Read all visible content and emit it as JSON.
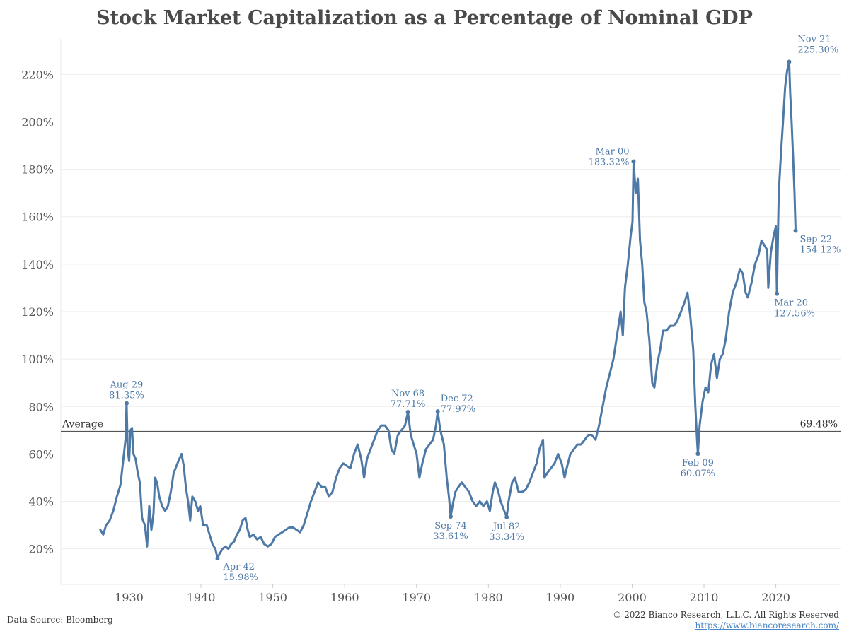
{
  "chart_data": {
    "type": "line",
    "title": "Stock Market Capitalization as a Percentage of Nominal GDP",
    "xlabel": "",
    "ylabel": "",
    "xlim": [
      1920.5,
      2029
    ],
    "ylim": [
      5,
      235
    ],
    "x_ticks": [
      {
        "value": 1930,
        "label": "1930"
      },
      {
        "value": 1940,
        "label": "1940"
      },
      {
        "value": 1950,
        "label": "1950"
      },
      {
        "value": 1960,
        "label": "1960"
      },
      {
        "value": 1970,
        "label": "1970"
      },
      {
        "value": 1980,
        "label": "1980"
      },
      {
        "value": 1990,
        "label": "1990"
      },
      {
        "value": 2000,
        "label": "2000"
      },
      {
        "value": 2010,
        "label": "2010"
      },
      {
        "value": 2020,
        "label": "2020"
      }
    ],
    "y_ticks": [
      {
        "value": 20,
        "label": "20%"
      },
      {
        "value": 40,
        "label": "40%"
      },
      {
        "value": 60,
        "label": "60%"
      },
      {
        "value": 80,
        "label": "80%"
      },
      {
        "value": 100,
        "label": "100%"
      },
      {
        "value": 120,
        "label": "120%"
      },
      {
        "value": 140,
        "label": "140%"
      },
      {
        "value": 160,
        "label": "160%"
      },
      {
        "value": 180,
        "label": "180%"
      },
      {
        "value": 200,
        "label": "200%"
      },
      {
        "value": 220,
        "label": "220%"
      }
    ],
    "grid": "horizontal",
    "series_color": "#4e79a7",
    "average": {
      "label": "Average",
      "value": 69.48,
      "value_label": "69.48%"
    },
    "series": [
      {
        "points": [
          [
            1926.0,
            28
          ],
          [
            1926.4,
            26
          ],
          [
            1926.8,
            30
          ],
          [
            1927.3,
            32
          ],
          [
            1927.8,
            36
          ],
          [
            1928.3,
            42
          ],
          [
            1928.8,
            47
          ],
          [
            1929.2,
            58
          ],
          [
            1929.5,
            66
          ],
          [
            1929.65,
            81.35
          ],
          [
            1929.8,
            62
          ],
          [
            1930.0,
            57
          ],
          [
            1930.2,
            70
          ],
          [
            1930.4,
            71
          ],
          [
            1930.6,
            60
          ],
          [
            1930.9,
            58
          ],
          [
            1931.2,
            52
          ],
          [
            1931.5,
            48
          ],
          [
            1931.8,
            33
          ],
          [
            1932.2,
            30
          ],
          [
            1932.5,
            21
          ],
          [
            1932.8,
            38
          ],
          [
            1933.1,
            28
          ],
          [
            1933.4,
            35
          ],
          [
            1933.6,
            50
          ],
          [
            1933.9,
            48
          ],
          [
            1934.2,
            42
          ],
          [
            1934.6,
            38
          ],
          [
            1935.0,
            36
          ],
          [
            1935.4,
            38
          ],
          [
            1935.8,
            44
          ],
          [
            1936.2,
            52
          ],
          [
            1936.6,
            55
          ],
          [
            1937.0,
            58
          ],
          [
            1937.3,
            60
          ],
          [
            1937.6,
            55
          ],
          [
            1937.9,
            46
          ],
          [
            1938.2,
            40
          ],
          [
            1938.5,
            32
          ],
          [
            1938.8,
            42
          ],
          [
            1939.2,
            40
          ],
          [
            1939.6,
            36
          ],
          [
            1939.9,
            38
          ],
          [
            1940.3,
            30
          ],
          [
            1940.8,
            30
          ],
          [
            1941.2,
            26
          ],
          [
            1941.6,
            22
          ],
          [
            1942.0,
            20
          ],
          [
            1942.3,
            15.98
          ],
          [
            1942.6,
            18
          ],
          [
            1943.0,
            20
          ],
          [
            1943.4,
            21
          ],
          [
            1943.8,
            20
          ],
          [
            1944.2,
            22
          ],
          [
            1944.6,
            23
          ],
          [
            1945.0,
            26
          ],
          [
            1945.4,
            28
          ],
          [
            1945.8,
            32
          ],
          [
            1946.2,
            33
          ],
          [
            1946.5,
            28
          ],
          [
            1946.8,
            25
          ],
          [
            1947.3,
            26
          ],
          [
            1947.8,
            24
          ],
          [
            1948.3,
            25
          ],
          [
            1948.8,
            22
          ],
          [
            1949.3,
            21
          ],
          [
            1949.8,
            22
          ],
          [
            1950.3,
            25
          ],
          [
            1950.8,
            26
          ],
          [
            1951.3,
            27
          ],
          [
            1951.8,
            28
          ],
          [
            1952.3,
            29
          ],
          [
            1952.8,
            29
          ],
          [
            1953.3,
            28
          ],
          [
            1953.8,
            27
          ],
          [
            1954.3,
            30
          ],
          [
            1954.8,
            35
          ],
          [
            1955.3,
            40
          ],
          [
            1955.8,
            44
          ],
          [
            1956.3,
            48
          ],
          [
            1956.8,
            46
          ],
          [
            1957.3,
            46
          ],
          [
            1957.8,
            42
          ],
          [
            1958.3,
            44
          ],
          [
            1958.8,
            50
          ],
          [
            1959.3,
            54
          ],
          [
            1959.8,
            56
          ],
          [
            1960.3,
            55
          ],
          [
            1960.8,
            54
          ],
          [
            1961.3,
            60
          ],
          [
            1961.8,
            64
          ],
          [
            1962.3,
            58
          ],
          [
            1962.7,
            50
          ],
          [
            1963.1,
            58
          ],
          [
            1963.6,
            62
          ],
          [
            1964.1,
            66
          ],
          [
            1964.6,
            70
          ],
          [
            1965.1,
            72
          ],
          [
            1965.6,
            72
          ],
          [
            1966.1,
            70
          ],
          [
            1966.5,
            62
          ],
          [
            1966.9,
            60
          ],
          [
            1967.4,
            68
          ],
          [
            1967.9,
            70
          ],
          [
            1968.4,
            72
          ],
          [
            1968.8,
            77.71
          ],
          [
            1969.2,
            68
          ],
          [
            1969.6,
            64
          ],
          [
            1970.0,
            60
          ],
          [
            1970.4,
            50
          ],
          [
            1970.8,
            56
          ],
          [
            1971.3,
            62
          ],
          [
            1971.8,
            64
          ],
          [
            1972.3,
            66
          ],
          [
            1972.7,
            72
          ],
          [
            1972.95,
            77.97
          ],
          [
            1973.3,
            70
          ],
          [
            1973.8,
            64
          ],
          [
            1974.2,
            50
          ],
          [
            1974.5,
            42
          ],
          [
            1974.75,
            33.61
          ],
          [
            1975.0,
            38
          ],
          [
            1975.4,
            44
          ],
          [
            1975.8,
            46
          ],
          [
            1976.3,
            48
          ],
          [
            1976.8,
            46
          ],
          [
            1977.3,
            44
          ],
          [
            1977.8,
            40
          ],
          [
            1978.3,
            38
          ],
          [
            1978.8,
            40
          ],
          [
            1979.3,
            38
          ],
          [
            1979.8,
            40
          ],
          [
            1980.2,
            36
          ],
          [
            1980.6,
            44
          ],
          [
            1980.9,
            48
          ],
          [
            1981.3,
            45
          ],
          [
            1981.7,
            40
          ],
          [
            1982.2,
            36
          ],
          [
            1982.55,
            33.34
          ],
          [
            1982.8,
            40
          ],
          [
            1983.3,
            48
          ],
          [
            1983.7,
            50
          ],
          [
            1984.2,
            44
          ],
          [
            1984.7,
            44
          ],
          [
            1985.2,
            45
          ],
          [
            1985.7,
            48
          ],
          [
            1986.2,
            52
          ],
          [
            1986.7,
            56
          ],
          [
            1987.1,
            62
          ],
          [
            1987.6,
            66
          ],
          [
            1987.8,
            50
          ],
          [
            1988.2,
            52
          ],
          [
            1988.7,
            54
          ],
          [
            1989.2,
            56
          ],
          [
            1989.7,
            60
          ],
          [
            1990.2,
            56
          ],
          [
            1990.6,
            50
          ],
          [
            1990.9,
            54
          ],
          [
            1991.4,
            60
          ],
          [
            1991.9,
            62
          ],
          [
            1992.4,
            64
          ],
          [
            1992.9,
            64
          ],
          [
            1993.4,
            66
          ],
          [
            1993.9,
            68
          ],
          [
            1994.4,
            68
          ],
          [
            1994.9,
            66
          ],
          [
            1995.4,
            72
          ],
          [
            1995.9,
            80
          ],
          [
            1996.4,
            88
          ],
          [
            1996.9,
            94
          ],
          [
            1997.4,
            100
          ],
          [
            1997.9,
            110
          ],
          [
            1998.4,
            120
          ],
          [
            1998.7,
            110
          ],
          [
            1999.0,
            130
          ],
          [
            1999.4,
            140
          ],
          [
            1999.8,
            152
          ],
          [
            2000.05,
            158
          ],
          [
            2000.2,
            183.32
          ],
          [
            2000.5,
            170
          ],
          [
            2000.8,
            176
          ],
          [
            2001.1,
            150
          ],
          [
            2001.4,
            140
          ],
          [
            2001.7,
            124
          ],
          [
            2002.0,
            120
          ],
          [
            2002.4,
            108
          ],
          [
            2002.8,
            90
          ],
          [
            2003.1,
            88
          ],
          [
            2003.5,
            98
          ],
          [
            2003.9,
            104
          ],
          [
            2004.3,
            112
          ],
          [
            2004.8,
            112
          ],
          [
            2005.3,
            114
          ],
          [
            2005.8,
            114
          ],
          [
            2006.3,
            116
          ],
          [
            2006.8,
            120
          ],
          [
            2007.3,
            124
          ],
          [
            2007.7,
            128
          ],
          [
            2008.1,
            118
          ],
          [
            2008.5,
            104
          ],
          [
            2008.8,
            80
          ],
          [
            2009.05,
            65
          ],
          [
            2009.15,
            60.07
          ],
          [
            2009.4,
            72
          ],
          [
            2009.8,
            82
          ],
          [
            2010.2,
            88
          ],
          [
            2010.6,
            86
          ],
          [
            2011.0,
            98
          ],
          [
            2011.4,
            102
          ],
          [
            2011.8,
            92
          ],
          [
            2012.2,
            100
          ],
          [
            2012.6,
            102
          ],
          [
            2013.0,
            108
          ],
          [
            2013.5,
            120
          ],
          [
            2014.0,
            128
          ],
          [
            2014.5,
            132
          ],
          [
            2015.0,
            138
          ],
          [
            2015.4,
            136
          ],
          [
            2015.8,
            128
          ],
          [
            2016.1,
            126
          ],
          [
            2016.6,
            132
          ],
          [
            2017.1,
            140
          ],
          [
            2017.6,
            144
          ],
          [
            2018.0,
            150
          ],
          [
            2018.4,
            148
          ],
          [
            2018.8,
            146
          ],
          [
            2018.95,
            130
          ],
          [
            2019.3,
            145
          ],
          [
            2019.7,
            152
          ],
          [
            2020.0,
            156
          ],
          [
            2020.15,
            127.56
          ],
          [
            2020.4,
            170
          ],
          [
            2020.7,
            186
          ],
          [
            2021.0,
            200
          ],
          [
            2021.3,
            215
          ],
          [
            2021.6,
            222
          ],
          [
            2021.85,
            225.3
          ],
          [
            2022.0,
            212
          ],
          [
            2022.2,
            200
          ],
          [
            2022.4,
            185
          ],
          [
            2022.6,
            170
          ],
          [
            2022.75,
            154.12
          ]
        ]
      }
    ],
    "annotations": [
      {
        "date": "Aug 29",
        "value": "81.35%",
        "x": 1929.65,
        "y": 81.35,
        "pos": "above"
      },
      {
        "date": "Apr 42",
        "value": "15.98%",
        "x": 1942.3,
        "y": 15.98,
        "pos": "below-right"
      },
      {
        "date": "Nov 68",
        "value": "77.71%",
        "x": 1968.8,
        "y": 77.71,
        "pos": "above"
      },
      {
        "date": "Dec 72",
        "value": "77.97%",
        "x": 1972.95,
        "y": 77.97,
        "pos": "above-right"
      },
      {
        "date": "Sep 74",
        "value": "33.61%",
        "x": 1974.75,
        "y": 33.61,
        "pos": "below"
      },
      {
        "date": "Jul 82",
        "value": "33.34%",
        "x": 1982.55,
        "y": 33.34,
        "pos": "below"
      },
      {
        "date": "Mar 00",
        "value": "183.32%",
        "x": 2000.2,
        "y": 183.32,
        "pos": "above-left"
      },
      {
        "date": "Feb 09",
        "value": "60.07%",
        "x": 2009.15,
        "y": 60.07,
        "pos": "below"
      },
      {
        "date": "Mar 20",
        "value": "127.56%",
        "x": 2020.15,
        "y": 127.56,
        "pos": "below-right"
      },
      {
        "date": "Nov 21",
        "value": "225.30%",
        "x": 2021.85,
        "y": 225.3,
        "pos": "above-right"
      },
      {
        "date": "Sep 22",
        "value": "154.12%",
        "x": 2022.75,
        "y": 154.12,
        "pos": "below-right"
      }
    ]
  },
  "footer": {
    "source": "Data Source: Bloomberg",
    "copyright": "© 2022 Bianco Research, L.L.C. All Rights Reserved",
    "url": "https://www.biancoresearch.com/"
  }
}
